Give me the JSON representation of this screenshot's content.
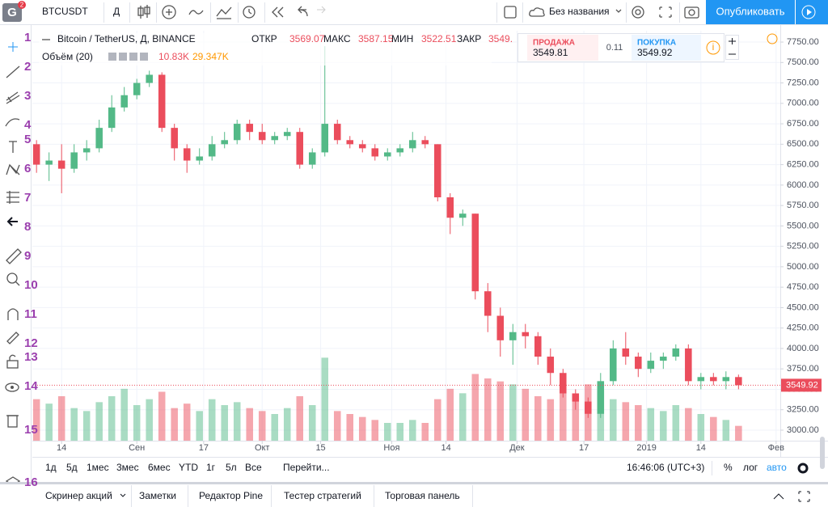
{
  "toolbar": {
    "symbol": "BTCUSDT",
    "interval": "Д",
    "layout_name": "Без названия",
    "publish": "Опубликовать",
    "badge": "2"
  },
  "legend": {
    "title": "Bitcoin / TetherUS, Д, BINANCE",
    "open_label": "ОТКР",
    "open": "3569.07",
    "high_label": "МАКС",
    "high": "3587.15",
    "low_label": "МИН",
    "low": "3522.51",
    "close_label": "ЗАКР",
    "close": "3549.",
    "volume_label": "Объём (20)",
    "volume": "10.83K",
    "volume_ma": "29.347K"
  },
  "trade_widget": {
    "sell_label": "ПРОДАЖА",
    "sell": "3549.81",
    "spread": "0.11",
    "buy_label": "ПОКУПКА",
    "buy": "3549.92"
  },
  "tool_numbers": [
    1,
    2,
    3,
    4,
    5,
    6,
    7,
    8,
    9,
    10,
    11,
    12,
    13,
    14,
    15,
    16
  ],
  "chart_data": {
    "type": "candlestick",
    "x": [
      1,
      4,
      7,
      10,
      13,
      16,
      19,
      22,
      25,
      28,
      31,
      34,
      37,
      40,
      43,
      46,
      49,
      52,
      55,
      58,
      61,
      64,
      67,
      70,
      73,
      76,
      79,
      82,
      85,
      88,
      91,
      94,
      97,
      100,
      103,
      106,
      109,
      112,
      115,
      118,
      121,
      124,
      127,
      130,
      133,
      136,
      139,
      142,
      145,
      148,
      151,
      154,
      157,
      160,
      163,
      166,
      169
    ],
    "open": [
      6500,
      6250,
      6300,
      6200,
      6400,
      6450,
      6700,
      6950,
      7100,
      7250,
      7350,
      6700,
      6450,
      6300,
      6350,
      6500,
      6550,
      6750,
      6650,
      6550,
      6600,
      6650,
      6250,
      6400,
      6750,
      6550,
      6500,
      6450,
      6350,
      6400,
      6450,
      6550,
      6500,
      5850,
      5600,
      5650,
      4700,
      4400,
      4100,
      4200,
      4150,
      3900,
      3700,
      3450,
      3350,
      3200,
      3600,
      4000,
      3900,
      3750,
      3850,
      3900,
      4000,
      3600,
      3650,
      3600,
      3650
    ],
    "high": [
      6550,
      6400,
      6500,
      6500,
      6550,
      6800,
      7100,
      7200,
      7300,
      7400,
      7380,
      6750,
      6500,
      6450,
      6600,
      6650,
      6800,
      6800,
      6750,
      6650,
      6700,
      6700,
      6450,
      7700,
      6800,
      6600,
      6550,
      6500,
      6450,
      6500,
      6650,
      6600,
      6500,
      5900,
      5700,
      5650,
      4800,
      4500,
      4300,
      4300,
      4200,
      4000,
      3750,
      3500,
      3400,
      3700,
      4100,
      4200,
      3950,
      3950,
      3950,
      4050,
      4050,
      3700,
      3700,
      3720,
      3680
    ],
    "low": [
      6150,
      6050,
      5900,
      6150,
      6300,
      6400,
      6650,
      6900,
      7050,
      7200,
      6650,
      6300,
      6150,
      6250,
      6300,
      6450,
      6500,
      6550,
      6500,
      6500,
      6550,
      6200,
      6200,
      6350,
      6500,
      6450,
      6400,
      6300,
      6300,
      6350,
      6400,
      6450,
      5800,
      5400,
      5500,
      4600,
      4200,
      3900,
      3800,
      4000,
      3800,
      3550,
      3400,
      3250,
      3150,
      3150,
      3550,
      3800,
      3650,
      3700,
      3750,
      3850,
      3550,
      3500,
      3550,
      3500,
      3500
    ],
    "close": [
      6250,
      6300,
      6200,
      6400,
      6450,
      6700,
      6950,
      7100,
      7250,
      7350,
      6700,
      6450,
      6300,
      6350,
      6500,
      6550,
      6750,
      6650,
      6550,
      6600,
      6650,
      6250,
      6400,
      6750,
      6550,
      6500,
      6450,
      6350,
      6400,
      6450,
      6550,
      6500,
      5850,
      5600,
      5650,
      4700,
      4400,
      4100,
      4200,
      4150,
      3900,
      3700,
      3450,
      3350,
      3200,
      3600,
      4000,
      3900,
      3750,
      3850,
      3900,
      4000,
      3600,
      3650,
      3600,
      3650,
      3550
    ],
    "volume": [
      28,
      25,
      30,
      22,
      20,
      26,
      30,
      35,
      24,
      28,
      33,
      22,
      25,
      20,
      28,
      24,
      26,
      22,
      20,
      18,
      22,
      30,
      24,
      56,
      20,
      18,
      16,
      14,
      12,
      12,
      14,
      12,
      28,
      35,
      32,
      45,
      42,
      40,
      38,
      35,
      30,
      28,
      32,
      30,
      38,
      34,
      28,
      26,
      24,
      22,
      20,
      24,
      22,
      18,
      16,
      14,
      10
    ],
    "up_color": "#53b987",
    "down_color": "#eb4d5c",
    "xlim": [
      0,
      179
    ],
    "ylim": [
      2871,
      7889
    ],
    "vlim": [
      0,
      60
    ],
    "xticks": [
      {
        "value": 7,
        "label": "14"
      },
      {
        "value": 25,
        "label": "Сен"
      },
      {
        "value": 41,
        "label": "17"
      },
      {
        "value": 55,
        "label": "Окт"
      },
      {
        "value": 69,
        "label": "15"
      },
      {
        "value": 86,
        "label": "Ноя"
      },
      {
        "value": 99,
        "label": "14"
      },
      {
        "value": 116,
        "label": "Дек"
      },
      {
        "value": 132,
        "label": "17"
      },
      {
        "value": 147,
        "label": "2019"
      },
      {
        "value": 160,
        "label": "14"
      },
      {
        "value": 178,
        "label": "Фев"
      }
    ],
    "yticks": [
      {
        "value": 3000,
        "label": "3000.00"
      },
      {
        "value": 3250,
        "label": "3250.00"
      },
      {
        "value": 3500,
        "label": "3500.00"
      },
      {
        "value": 3750,
        "label": "3750.00"
      },
      {
        "value": 4000,
        "label": "4000.00"
      },
      {
        "value": 4250,
        "label": "4250.00"
      },
      {
        "value": 4500,
        "label": "4500.00"
      },
      {
        "value": 4750,
        "label": "4750.00"
      },
      {
        "value": 5000,
        "label": "5000.00"
      },
      {
        "value": 5250,
        "label": "5250.00"
      },
      {
        "value": 5500,
        "label": "5500.00"
      },
      {
        "value": 5750,
        "label": "5750.00"
      },
      {
        "value": 6000,
        "label": "6000.00"
      },
      {
        "value": 6250,
        "label": "6250.00"
      },
      {
        "value": 6500,
        "label": "6500.00"
      },
      {
        "value": 6750,
        "label": "6750.00"
      },
      {
        "value": 7000,
        "label": "7000.00"
      },
      {
        "value": 7250,
        "label": "7250.00"
      },
      {
        "value": 7500,
        "label": "7500.00"
      },
      {
        "value": 7750,
        "label": "7750.00"
      }
    ],
    "grid": true,
    "last_price": 3549.92
  },
  "timeframes": [
    "1д",
    "5д",
    "1мес",
    "3мес",
    "6мес",
    "YTD",
    "1г",
    "5л",
    "Все",
    "Перейти..."
  ],
  "status": {
    "clock": "16:46:06 (UTC+3)",
    "percent": "%",
    "log": "лог",
    "auto": "авто"
  },
  "bottom_tabs": [
    "Скринер акций",
    "Заметки",
    "Редактор Pine",
    "Тестер стратегий",
    "Торговая панель"
  ]
}
